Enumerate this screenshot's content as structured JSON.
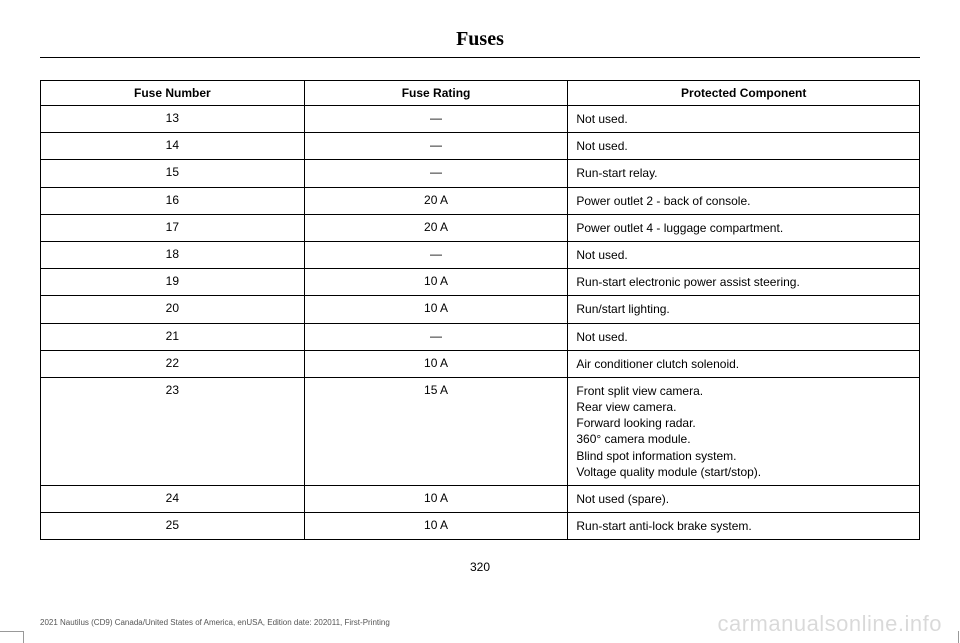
{
  "title": "Fuses",
  "page_number": "320",
  "footer_text": "2021 Nautilus (CD9) Canada/United States of America, enUSA, Edition date: 202011, First-Printing",
  "watermark": "carmanualsonline.info",
  "table": {
    "columns": [
      "Fuse Number",
      "Fuse Rating",
      "Protected Component"
    ],
    "col_widths_pct": [
      30,
      30,
      40
    ],
    "header_fontsize": 12,
    "cell_fontsize": 12,
    "border_color": "#000000",
    "rows": [
      {
        "num": "13",
        "rating": "—",
        "comp": [
          "Not used."
        ]
      },
      {
        "num": "14",
        "rating": "—",
        "comp": [
          "Not used."
        ]
      },
      {
        "num": "15",
        "rating": "—",
        "comp": [
          "Run-start relay."
        ]
      },
      {
        "num": "16",
        "rating": "20 A",
        "comp": [
          "Power outlet 2 - back of console."
        ]
      },
      {
        "num": "17",
        "rating": "20 A",
        "comp": [
          "Power outlet 4 - luggage compartment."
        ]
      },
      {
        "num": "18",
        "rating": "—",
        "comp": [
          "Not used."
        ]
      },
      {
        "num": "19",
        "rating": "10 A",
        "comp": [
          "Run-start electronic power assist steering."
        ]
      },
      {
        "num": "20",
        "rating": "10 A",
        "comp": [
          "Run/start lighting."
        ]
      },
      {
        "num": "21",
        "rating": "—",
        "comp": [
          "Not used."
        ]
      },
      {
        "num": "22",
        "rating": "10 A",
        "comp": [
          "Air conditioner clutch solenoid."
        ]
      },
      {
        "num": "23",
        "rating": "15 A",
        "comp": [
          "Front split view camera.",
          "Rear view camera.",
          "Forward looking radar.",
          "360° camera module.",
          "Blind spot information system.",
          "Voltage quality module (start/stop)."
        ]
      },
      {
        "num": "24",
        "rating": "10 A",
        "comp": [
          "Not used (spare)."
        ]
      },
      {
        "num": "25",
        "rating": "10 A",
        "comp": [
          "Run-start anti-lock brake system."
        ]
      }
    ]
  }
}
